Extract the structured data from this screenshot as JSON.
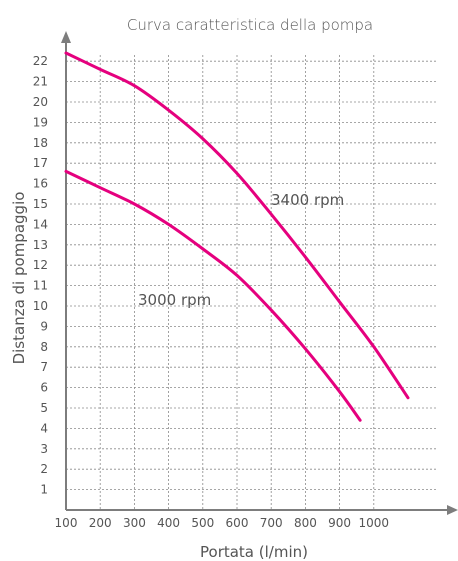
{
  "chart_data": {
    "type": "line",
    "title": "Curva caratteristica della pompa",
    "xlabel": "Portata (l/min)",
    "ylabel": "Distanza di pompaggio",
    "x_ticks": [
      100,
      200,
      300,
      400,
      500,
      600,
      700,
      800,
      900,
      1000
    ],
    "y_ticks": [
      1,
      2,
      3,
      4,
      5,
      6,
      7,
      8,
      9,
      10,
      11,
      12,
      13,
      14,
      15,
      16,
      17,
      18,
      19,
      20,
      21,
      22
    ],
    "xlim": [
      100,
      1150
    ],
    "ylim": [
      0,
      23
    ],
    "grid": true,
    "series": [
      {
        "name": "3400 rpm",
        "color": "#e5007e",
        "x": [
          100,
          200,
          300,
          400,
          500,
          600,
          700,
          800,
          900,
          1000,
          1100
        ],
        "y": [
          22.4,
          21.6,
          20.8,
          19.6,
          18.2,
          16.5,
          14.5,
          12.4,
          10.2,
          8.0,
          5.5
        ]
      },
      {
        "name": "3000 rpm",
        "color": "#e5007e",
        "x": [
          100,
          200,
          300,
          400,
          500,
          600,
          700,
          800,
          900,
          960
        ],
        "y": [
          16.6,
          15.8,
          15.0,
          14.0,
          12.8,
          11.5,
          9.8,
          7.9,
          5.8,
          4.4
        ]
      }
    ]
  }
}
